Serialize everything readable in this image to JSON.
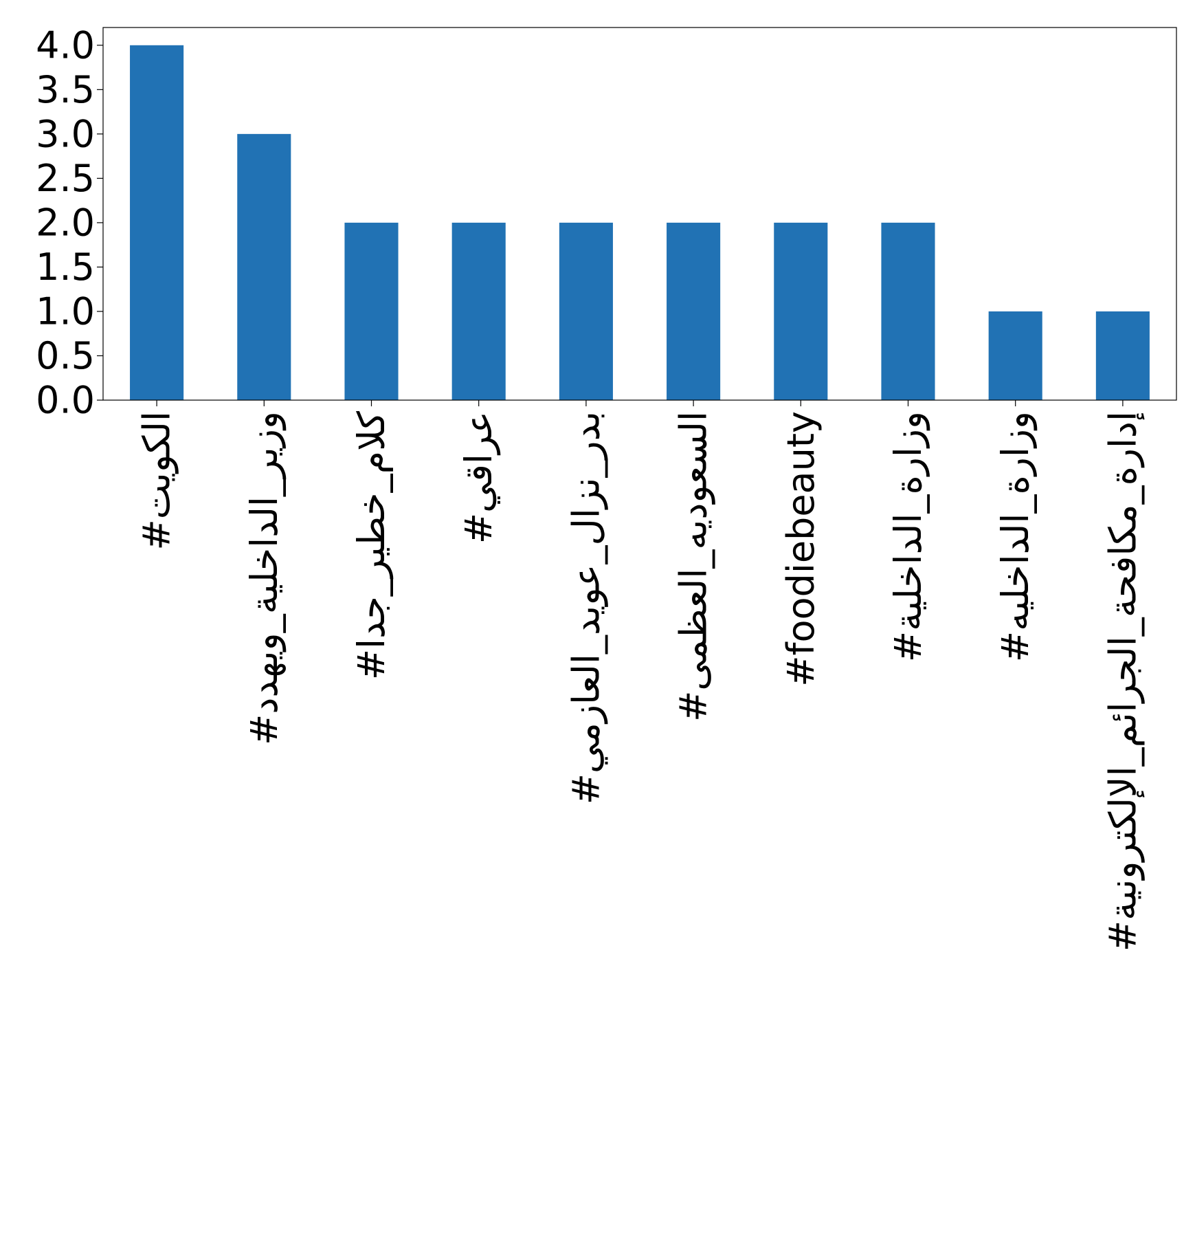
{
  "chart_data": {
    "type": "bar",
    "title": "",
    "xlabel": "",
    "ylabel": "",
    "categories": [
      "#الكويت",
      "#وزير_الداخلية_ويهدد",
      "#كلام_خطير_جدا",
      "#عراقي",
      "#بدر_نزال_عويد_العازمي",
      "#السعوديه_العظمى",
      "#foodiebeauty",
      "#وزارة_الداخلية",
      "#وزارة_الداخليه",
      "#إدارة_مكافحة_الجرائم_الإلكترونية"
    ],
    "values": [
      4,
      3,
      2,
      2,
      2,
      2,
      2,
      2,
      1,
      1
    ],
    "ylim": [
      0,
      4.2
    ],
    "yticks": [
      "0.0",
      "0.5",
      "1.0",
      "1.5",
      "2.0",
      "2.5",
      "3.0",
      "3.5",
      "4.0"
    ],
    "grid": false,
    "legend": "none",
    "bar_color": "#2172b4"
  }
}
